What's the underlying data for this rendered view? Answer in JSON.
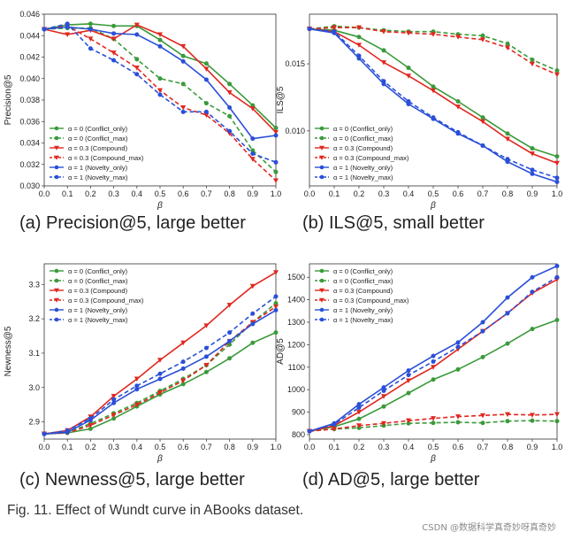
{
  "figure_caption": "Fig. 11. Effect of Wundt curve in ABooks dataset.",
  "watermark": "CSDN @数据科学真奇妙呀真奇妙",
  "colors": {
    "green": "#3a9a3a",
    "red": "#e0281f",
    "blue": "#2a4fd8"
  },
  "chart_data": [
    {
      "type": "line",
      "caption": "(a) Precision@5, large better",
      "xlabel": "β",
      "ylabel": "Precision@5",
      "x": [
        0.0,
        0.1,
        0.2,
        0.3,
        0.4,
        0.5,
        0.6,
        0.7,
        0.8,
        0.9,
        1.0
      ],
      "xticks": [
        "0.0",
        "0.1",
        "0.2",
        "0.3",
        "0.4",
        "0.5",
        "0.6",
        "0.7",
        "0.8",
        "0.9",
        "1.0"
      ],
      "ylim": [
        0.03,
        0.046
      ],
      "yticks": [
        "0.030",
        "0.032",
        "0.034",
        "0.036",
        "0.038",
        "0.040",
        "0.042",
        "0.044",
        "0.046"
      ],
      "legend_position": "bottom-left",
      "series": [
        {
          "name": "α = 0   (Conflict_only)",
          "color": "green",
          "dashed": false,
          "marker": "circle",
          "values": [
            0.0446,
            0.045,
            0.0451,
            0.0449,
            0.0449,
            0.0436,
            0.0421,
            0.0414,
            0.0395,
            0.0375,
            0.0354
          ]
        },
        {
          "name": "α = 0   (Conflict_max)",
          "color": "green",
          "dashed": true,
          "marker": "circle",
          "values": [
            0.0446,
            0.0447,
            0.0447,
            0.0437,
            0.0418,
            0.04,
            0.0395,
            0.0377,
            0.0365,
            0.0333,
            0.0313
          ]
        },
        {
          "name": "α = 0.3 (Compound)",
          "color": "red",
          "dashed": false,
          "marker": "triangle",
          "values": [
            0.0446,
            0.0441,
            0.0445,
            0.0437,
            0.045,
            0.0441,
            0.043,
            0.0409,
            0.0387,
            0.0372,
            0.035
          ]
        },
        {
          "name": "α = 0.3 (Compound_max)",
          "color": "red",
          "dashed": true,
          "marker": "triangle",
          "values": [
            0.0446,
            0.0449,
            0.0437,
            0.0424,
            0.041,
            0.0389,
            0.0373,
            0.0366,
            0.0349,
            0.0325,
            0.0305
          ]
        },
        {
          "name": "α = 1   (Novelty_only)",
          "color": "blue",
          "dashed": false,
          "marker": "circle",
          "values": [
            0.0446,
            0.0448,
            0.0446,
            0.0442,
            0.0441,
            0.043,
            0.0416,
            0.0399,
            0.0373,
            0.0344,
            0.0347
          ]
        },
        {
          "name": "α = 1   (Novelty_max)",
          "color": "blue",
          "dashed": true,
          "marker": "circle",
          "values": [
            0.0446,
            0.0451,
            0.0428,
            0.0417,
            0.0404,
            0.0385,
            0.0369,
            0.0369,
            0.0351,
            0.033,
            0.0322
          ]
        }
      ]
    },
    {
      "type": "line",
      "caption": "(b) ILS@5, small better",
      "xlabel": "β",
      "ylabel": "ILS@5",
      "x": [
        0.0,
        0.1,
        0.2,
        0.3,
        0.4,
        0.5,
        0.6,
        0.7,
        0.8,
        0.9,
        1.0
      ],
      "xticks": [
        "0.0",
        "0.1",
        "0.2",
        "0.3",
        "0.4",
        "0.5",
        "0.6",
        "0.7",
        "0.8",
        "0.9",
        "1.0"
      ],
      "ylim": [
        0.0059,
        0.0187
      ],
      "yticks": [
        "0.010",
        "0.015"
      ],
      "ytick_values": [
        0.01,
        0.015
      ],
      "legend_position": "bottom-left",
      "series": [
        {
          "name": "α = 0   (Conflict_only)",
          "color": "green",
          "dashed": false,
          "marker": "circle",
          "values": [
            0.0176,
            0.0175,
            0.017,
            0.016,
            0.0147,
            0.0133,
            0.0122,
            0.011,
            0.0098,
            0.0087,
            0.0081
          ]
        },
        {
          "name": "α = 0   (Conflict_max)",
          "color": "green",
          "dashed": true,
          "marker": "circle",
          "values": [
            0.0176,
            0.0178,
            0.0177,
            0.0175,
            0.0174,
            0.0174,
            0.0172,
            0.0171,
            0.0165,
            0.0153,
            0.0145
          ]
        },
        {
          "name": "α = 0.3 (Compound)",
          "color": "red",
          "dashed": false,
          "marker": "triangle",
          "values": [
            0.0176,
            0.0174,
            0.0164,
            0.0151,
            0.0141,
            0.013,
            0.0118,
            0.0107,
            0.0094,
            0.0083,
            0.0076
          ]
        },
        {
          "name": "α = 0.3 (Compound_max)",
          "color": "red",
          "dashed": true,
          "marker": "triangle",
          "values": [
            0.0176,
            0.0177,
            0.0177,
            0.0174,
            0.0173,
            0.0172,
            0.017,
            0.0168,
            0.0162,
            0.015,
            0.0142
          ]
        },
        {
          "name": "α = 1   (Novelty_only)",
          "color": "blue",
          "dashed": false,
          "marker": "circle",
          "values": [
            0.0176,
            0.0173,
            0.0154,
            0.0135,
            0.012,
            0.0109,
            0.0098,
            0.0089,
            0.0077,
            0.0068,
            0.0062
          ]
        },
        {
          "name": "α = 1   (Novelty_max)",
          "color": "blue",
          "dashed": true,
          "marker": "circle",
          "values": [
            0.0176,
            0.0174,
            0.0156,
            0.0137,
            0.0122,
            0.011,
            0.0099,
            0.0089,
            0.0079,
            0.0071,
            0.0065
          ]
        }
      ]
    },
    {
      "type": "line",
      "caption": "(c) Newness@5, large better",
      "xlabel": "β",
      "ylabel": "Newness@5",
      "x": [
        0.0,
        0.1,
        0.2,
        0.3,
        0.4,
        0.5,
        0.6,
        0.7,
        0.8,
        0.9,
        1.0
      ],
      "xticks": [
        "0.0",
        "0.1",
        "0.2",
        "0.3",
        "0.4",
        "0.5",
        "0.6",
        "0.7",
        "0.8",
        "0.9",
        "1.0"
      ],
      "ylim": [
        2.85,
        3.36
      ],
      "yticks": [
        "2.9",
        "3.0",
        "3.1",
        "3.2",
        "3.3"
      ],
      "ytick_values": [
        2.9,
        3.0,
        3.1,
        3.2,
        3.3
      ],
      "legend_position": "top-left",
      "series": [
        {
          "name": "α = 0   (Conflict_only)",
          "color": "green",
          "dashed": false,
          "marker": "circle",
          "values": [
            2.865,
            2.868,
            2.88,
            2.91,
            2.945,
            2.98,
            3.01,
            3.045,
            3.085,
            3.13,
            3.16
          ]
        },
        {
          "name": "α = 0   (Conflict_max)",
          "color": "green",
          "dashed": true,
          "marker": "circle",
          "values": [
            2.865,
            2.869,
            2.895,
            2.925,
            2.955,
            2.99,
            3.025,
            3.065,
            3.125,
            3.19,
            3.245
          ]
        },
        {
          "name": "α = 0.3 (Compound)",
          "color": "red",
          "dashed": false,
          "marker": "triangle",
          "values": [
            2.865,
            2.875,
            2.915,
            2.975,
            3.025,
            3.08,
            3.13,
            3.18,
            3.24,
            3.295,
            3.335
          ]
        },
        {
          "name": "α = 0.3 (Compound_max)",
          "color": "red",
          "dashed": true,
          "marker": "triangle",
          "values": [
            2.865,
            2.868,
            2.89,
            2.92,
            2.95,
            2.985,
            3.02,
            3.065,
            3.135,
            3.19,
            3.235
          ]
        },
        {
          "name": "α = 1   (Novelty_only)",
          "color": "blue",
          "dashed": false,
          "marker": "circle",
          "values": [
            2.865,
            2.87,
            2.905,
            2.955,
            2.995,
            3.025,
            3.055,
            3.09,
            3.135,
            3.185,
            3.225
          ]
        },
        {
          "name": "α = 1   (Novelty_max)",
          "color": "blue",
          "dashed": true,
          "marker": "circle",
          "values": [
            2.865,
            2.875,
            2.91,
            2.965,
            3.005,
            3.04,
            3.075,
            3.115,
            3.16,
            3.215,
            3.265
          ]
        }
      ]
    },
    {
      "type": "line",
      "caption": "(d) AD@5, large better",
      "xlabel": "β",
      "ylabel": "AD@5",
      "x": [
        0.0,
        0.1,
        0.2,
        0.3,
        0.4,
        0.5,
        0.6,
        0.7,
        0.8,
        0.9,
        1.0
      ],
      "xticks": [
        "0.0",
        "0.1",
        "0.2",
        "0.3",
        "0.4",
        "0.5",
        "0.6",
        "0.7",
        "0.8",
        "0.9",
        "1.0"
      ],
      "ylim": [
        780,
        1560
      ],
      "yticks": [
        "800",
        "900",
        "1000",
        "1100",
        "1200",
        "1300",
        "1400",
        "1500"
      ],
      "ytick_values": [
        800,
        900,
        1000,
        1100,
        1200,
        1300,
        1400,
        1500
      ],
      "legend_position": "top-left",
      "series": [
        {
          "name": "α = 0   (Conflict_only)",
          "color": "green",
          "dashed": false,
          "marker": "circle",
          "values": [
            815,
            835,
            870,
            925,
            985,
            1045,
            1090,
            1145,
            1205,
            1270,
            1310
          ]
        },
        {
          "name": "α = 0   (Conflict_max)",
          "color": "green",
          "dashed": true,
          "marker": "circle",
          "values": [
            815,
            825,
            830,
            840,
            850,
            852,
            855,
            852,
            860,
            862,
            860
          ]
        },
        {
          "name": "α = 0.3 (Compound)",
          "color": "red",
          "dashed": false,
          "marker": "triangle",
          "values": [
            815,
            840,
            900,
            970,
            1040,
            1100,
            1180,
            1260,
            1340,
            1430,
            1490
          ]
        },
        {
          "name": "α = 0.3 (Compound_max)",
          "color": "red",
          "dashed": true,
          "marker": "triangle",
          "values": [
            815,
            825,
            840,
            850,
            862,
            872,
            880,
            885,
            890,
            887,
            890
          ]
        },
        {
          "name": "α = 1   (Novelty_only)",
          "color": "blue",
          "dashed": false,
          "marker": "circle",
          "values": [
            815,
            850,
            935,
            1010,
            1085,
            1150,
            1210,
            1300,
            1410,
            1500,
            1550
          ]
        },
        {
          "name": "α = 1   (Novelty_max)",
          "color": "blue",
          "dashed": true,
          "marker": "circle",
          "values": [
            815,
            845,
            920,
            995,
            1065,
            1125,
            1190,
            1260,
            1340,
            1435,
            1500
          ]
        }
      ]
    }
  ]
}
